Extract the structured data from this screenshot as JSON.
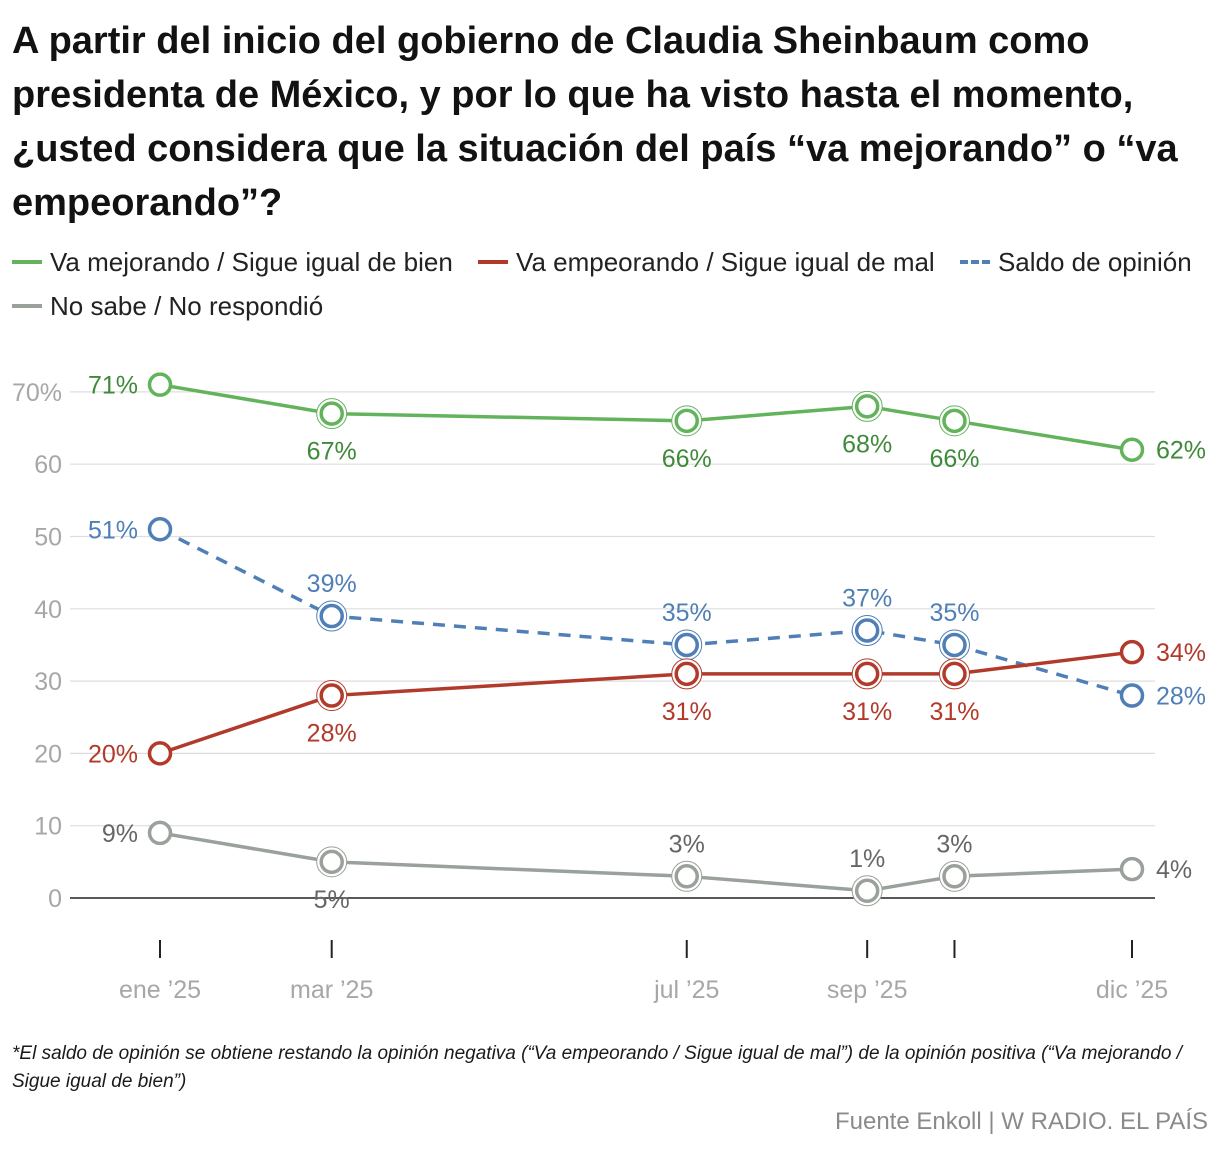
{
  "title": "A partir del inicio del gobierno de Claudia Sheinbaum como presidenta de México, y por lo que ha visto hasta el momento, ¿usted considera que la situación del país “va mejorando” o “va empeorando”?",
  "legend": [
    {
      "label": "Va mejorando / Sigue igual de bien",
      "color": "#62b35c",
      "style": "solid"
    },
    {
      "label": "Va empeorando / Sigue igual de mal",
      "color": "#b23a2a",
      "style": "solid"
    },
    {
      "label": "Saldo de opinión",
      "color": "#4f7fb6",
      "style": "dashed"
    },
    {
      "label": "No sabe / No respondió",
      "color": "#9aa09a",
      "style": "solid"
    }
  ],
  "chart_data": {
    "type": "line",
    "x_dates": [
      "2025-01-15",
      "2025-03-15",
      "2025-07-15",
      "2025-09-15",
      "2025-10-15",
      "2025-12-15"
    ],
    "x_tick_labels": [
      "ene ’25",
      "mar ’25",
      "",
      "jul ’25",
      "sep ’25",
      "",
      "dic ’25"
    ],
    "y_tick_labels": [
      "70%",
      "60",
      "50",
      "40",
      "30",
      "20",
      "10",
      "0"
    ],
    "y_ticks": [
      70,
      60,
      50,
      40,
      30,
      20,
      10,
      0
    ],
    "ylim": [
      0,
      70
    ],
    "grid": true,
    "legend_position": "top",
    "series": [
      {
        "name": "Va mejorando / Sigue igual de bien",
        "color": "#62b35c",
        "label_color": "#3f8a3a",
        "dashed": false,
        "values": [
          71,
          67,
          66,
          68,
          66,
          62
        ],
        "labels": [
          "71%",
          "67%",
          "66%",
          "68%",
          "66%",
          "62%"
        ],
        "label_pos": [
          "left",
          "below",
          "below",
          "below",
          "below",
          "right"
        ]
      },
      {
        "name": "Saldo de opinión",
        "color": "#4f7fb6",
        "label_color": "#4f7fb6",
        "dashed": true,
        "values": [
          51,
          39,
          35,
          37,
          35,
          28
        ],
        "labels": [
          "51%",
          "39%",
          "35%",
          "37%",
          "35%",
          "28%"
        ],
        "label_pos": [
          "left",
          "above",
          "above",
          "above",
          "above",
          "right"
        ]
      },
      {
        "name": "Va empeorando / Sigue igual de mal",
        "color": "#b23a2a",
        "label_color": "#b23a2a",
        "dashed": false,
        "values": [
          20,
          28,
          31,
          31,
          31,
          34
        ],
        "labels": [
          "20%",
          "28%",
          "31%",
          "31%",
          "31%",
          "34%"
        ],
        "label_pos": [
          "left",
          "below",
          "below",
          "below",
          "below",
          "right"
        ]
      },
      {
        "name": "No sabe / No respondió",
        "color": "#9aa09a",
        "label_color": "#666666",
        "dashed": false,
        "values": [
          9,
          5,
          3,
          1,
          3,
          4
        ],
        "labels": [
          "9%",
          "5%",
          "3%",
          "1%",
          "3%",
          "4%"
        ],
        "label_pos": [
          "left",
          "below",
          "above",
          "above",
          "above",
          "right"
        ]
      }
    ]
  },
  "note": "*El saldo de opinión se obtiene restando la opinión negativa (“Va empeorando / Sigue igual de mal”) de la opinión positiva (“Va mejorando / Sigue igual de bien”)",
  "source": "Fuente Enkoll | W RADIO. EL PAÍS"
}
